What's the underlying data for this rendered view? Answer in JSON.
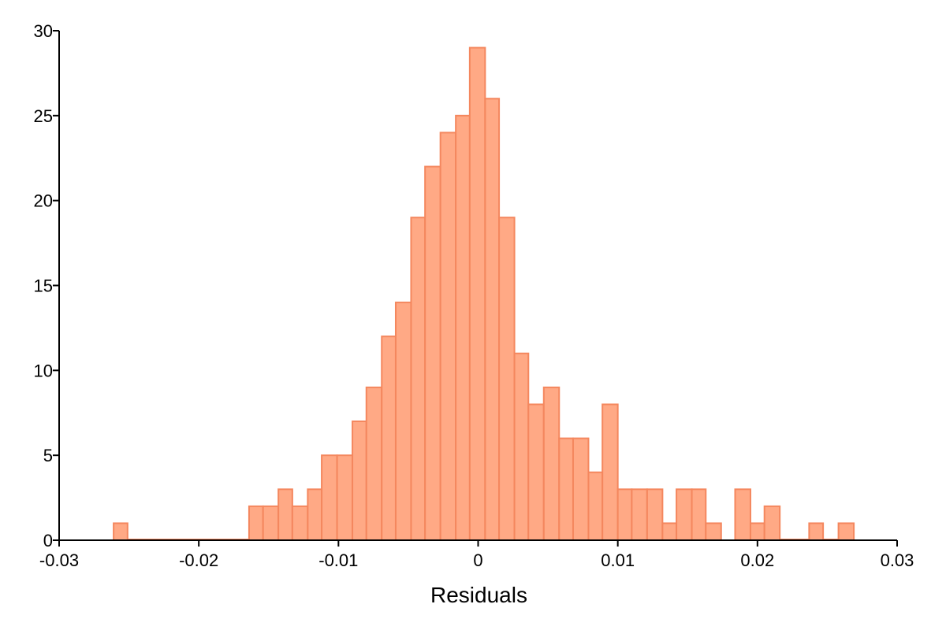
{
  "chart_data": {
    "type": "bar",
    "subtype": "histogram",
    "title": "",
    "xlabel": "Residuals",
    "ylabel": "",
    "xlim": [
      -0.03,
      0.03
    ],
    "ylim": [
      0,
      30
    ],
    "grid": false,
    "bar_color": "#FFA985",
    "bar_edge_color": "#F4875E",
    "xticks": [
      -0.03,
      -0.02,
      -0.01,
      0,
      0.01,
      0.02,
      0.03
    ],
    "xtick_labels": [
      "-0.03",
      "-0.02",
      "-0.01",
      "0",
      "0.01",
      "0.02",
      "0.03"
    ],
    "yticks": [
      0,
      5,
      10,
      15,
      20,
      25,
      30
    ],
    "ytick_labels": [
      "0",
      "5",
      "10",
      "15",
      "20",
      "25",
      "30"
    ],
    "bins": [
      {
        "x0": -0.0261,
        "x1": -0.0251,
        "count": 1
      },
      {
        "x0": -0.0164,
        "x1": -0.0154,
        "count": 2
      },
      {
        "x0": -0.0154,
        "x1": -0.0143,
        "count": 2
      },
      {
        "x0": -0.0143,
        "x1": -0.0133,
        "count": 3
      },
      {
        "x0": -0.0133,
        "x1": -0.0122,
        "count": 2
      },
      {
        "x0": -0.0122,
        "x1": -0.0112,
        "count": 3
      },
      {
        "x0": -0.0112,
        "x1": -0.0101,
        "count": 5
      },
      {
        "x0": -0.0101,
        "x1": -0.009,
        "count": 5
      },
      {
        "x0": -0.009,
        "x1": -0.008,
        "count": 7
      },
      {
        "x0": -0.008,
        "x1": -0.0069,
        "count": 9
      },
      {
        "x0": -0.0069,
        "x1": -0.0059,
        "count": 12
      },
      {
        "x0": -0.0059,
        "x1": -0.0048,
        "count": 14
      },
      {
        "x0": -0.0048,
        "x1": -0.0038,
        "count": 19
      },
      {
        "x0": -0.0038,
        "x1": -0.0027,
        "count": 22
      },
      {
        "x0": -0.0027,
        "x1": -0.0016,
        "count": 24
      },
      {
        "x0": -0.0016,
        "x1": -0.0006,
        "count": 25
      },
      {
        "x0": -0.0006,
        "x1": 0.0005,
        "count": 29
      },
      {
        "x0": 0.0005,
        "x1": 0.0015,
        "count": 26
      },
      {
        "x0": 0.0015,
        "x1": 0.0026,
        "count": 19
      },
      {
        "x0": 0.0026,
        "x1": 0.0036,
        "count": 11
      },
      {
        "x0": 0.0036,
        "x1": 0.0047,
        "count": 8
      },
      {
        "x0": 0.0047,
        "x1": 0.0058,
        "count": 9
      },
      {
        "x0": 0.0058,
        "x1": 0.0068,
        "count": 6
      },
      {
        "x0": 0.0068,
        "x1": 0.0079,
        "count": 6
      },
      {
        "x0": 0.0079,
        "x1": 0.0089,
        "count": 4
      },
      {
        "x0": 0.0089,
        "x1": 0.01,
        "count": 8
      },
      {
        "x0": 0.01,
        "x1": 0.011,
        "count": 3
      },
      {
        "x0": 0.011,
        "x1": 0.0121,
        "count": 3
      },
      {
        "x0": 0.0121,
        "x1": 0.0132,
        "count": 3
      },
      {
        "x0": 0.0132,
        "x1": 0.0142,
        "count": 1
      },
      {
        "x0": 0.0142,
        "x1": 0.0153,
        "count": 3
      },
      {
        "x0": 0.0153,
        "x1": 0.0163,
        "count": 3
      },
      {
        "x0": 0.0163,
        "x1": 0.0174,
        "count": 1
      },
      {
        "x0": 0.0184,
        "x1": 0.0195,
        "count": 3
      },
      {
        "x0": 0.0195,
        "x1": 0.0205,
        "count": 1
      },
      {
        "x0": 0.0205,
        "x1": 0.0216,
        "count": 2
      },
      {
        "x0": 0.0237,
        "x1": 0.0247,
        "count": 1
      },
      {
        "x0": 0.0258,
        "x1": 0.0269,
        "count": 1
      }
    ]
  }
}
